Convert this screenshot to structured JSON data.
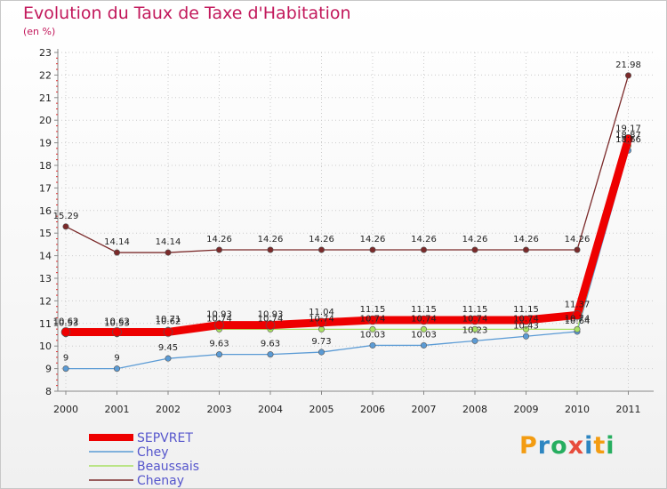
{
  "header": {
    "title": "Evolution du Taux de Taxe d'Habitation",
    "subtitle": "(en %)"
  },
  "logo": {
    "text": "Proxiti",
    "letters": [
      {
        "ch": "P",
        "color": "#f39c12"
      },
      {
        "ch": "r",
        "color": "#2e86c1"
      },
      {
        "ch": "o",
        "color": "#27ae60"
      },
      {
        "ch": "x",
        "color": "#e74c3c"
      },
      {
        "ch": "i",
        "color": "#2e86c1"
      },
      {
        "ch": "t",
        "color": "#f39c12"
      },
      {
        "ch": "i",
        "color": "#27ae60"
      }
    ]
  },
  "chart_data": {
    "type": "line",
    "title": "Evolution du Taux de Taxe d'Habitation",
    "subtitle": "(en %)",
    "x": [
      "2000",
      "2001",
      "2002",
      "2003",
      "2004",
      "2005",
      "2006",
      "2007",
      "2008",
      "2009",
      "2010",
      "2011"
    ],
    "ylim": [
      8,
      23
    ],
    "yticks": [
      8,
      9,
      10,
      11,
      12,
      13,
      14,
      15,
      16,
      17,
      18,
      19,
      20,
      21,
      22,
      23
    ],
    "legend_position": "bottom-left",
    "series": [
      {
        "name": "Chenay",
        "color": "#7b2a2a",
        "line_width": 1.3,
        "values": [
          15.29,
          14.14,
          14.14,
          14.26,
          14.26,
          14.26,
          14.26,
          14.26,
          14.26,
          14.26,
          14.26,
          21.98
        ],
        "labels": [
          "15.29",
          "14.14",
          "14.14",
          "14.26",
          "14.26",
          "14.26",
          "14.26",
          "14.26",
          "14.26",
          "14.26",
          "14.26",
          "21.98"
        ]
      },
      {
        "name": "Chey",
        "color": "#5b9bd5",
        "line_width": 1.3,
        "values": [
          9,
          9,
          9.45,
          9.63,
          9.63,
          9.73,
          10.03,
          10.03,
          10.23,
          10.43,
          10.64,
          18.66
        ],
        "labels": [
          "9",
          "9",
          "9.45",
          "9.63",
          "9.63",
          "9.73",
          "10.03",
          "10.03",
          "10.23",
          "10.43",
          "10.64",
          "18.66"
        ]
      },
      {
        "name": "Beaussais",
        "color": "#a8e063",
        "line_width": 1.3,
        "values": [
          10.53,
          10.53,
          10.71,
          10.74,
          10.74,
          10.74,
          10.74,
          10.74,
          10.74,
          10.74,
          10.74,
          18.87
        ],
        "labels": [
          "10.53",
          "10.53",
          "10.71",
          "10.74",
          "10.74",
          "10.74",
          "10.74",
          "10.74",
          "10.74",
          "10.74",
          "10.74",
          "18.87"
        ]
      },
      {
        "name": "SEPVRET",
        "color": "#ee0000",
        "line_width": 9,
        "values": [
          10.62,
          10.62,
          10.62,
          10.93,
          10.93,
          11.04,
          11.15,
          11.15,
          11.15,
          11.15,
          11.37,
          19.17
        ],
        "labels": [
          "10.62",
          "10.62",
          "10.62",
          "10.93",
          "10.93",
          "11.04",
          "11.15",
          "11.15",
          "11.15",
          "11.15",
          "11.37",
          "19.17"
        ]
      }
    ],
    "legend_order": [
      "SEPVRET",
      "Chey",
      "Beaussais",
      "Chenay"
    ]
  }
}
